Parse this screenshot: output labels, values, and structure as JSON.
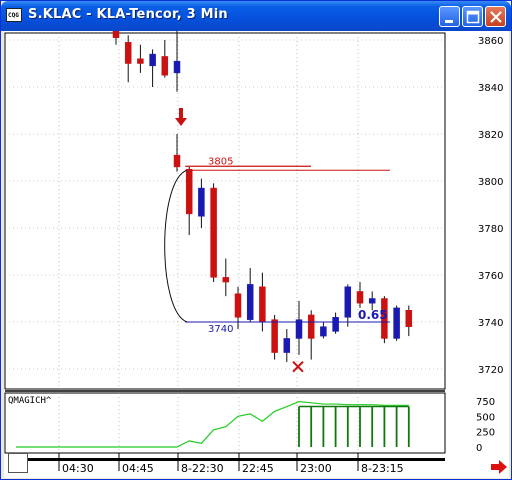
{
  "window": {
    "title": "S.KLAC - KLA-Tencor, 3 Min",
    "icon": "cqg-logo-icon",
    "icon_text": "CQG",
    "buttons": [
      "minimize-icon",
      "maximize-icon",
      "close-icon"
    ]
  },
  "chart_data": [
    {
      "type": "candlestick",
      "title": "",
      "ylim": [
        3710,
        3865
      ],
      "y_ticks": [
        "3860",
        "3840",
        "3820",
        "3800",
        "3780",
        "3760",
        "3740",
        "3720"
      ],
      "x_ticks": [
        "04:30",
        "04:45",
        "8-22:30",
        "22:45",
        "23:00",
        "8-23:15"
      ],
      "colors": {
        "up": "#1a1ab0",
        "down": "#cc1111",
        "grid": "#888888"
      },
      "gap_after_bar": 13,
      "candles": [
        {
          "o": 3866,
          "h": 3868,
          "l": 3858,
          "c": 3861
        },
        {
          "o": 3859,
          "h": 3862,
          "l": 3842,
          "c": 3850
        },
        {
          "o": 3852,
          "h": 3858,
          "l": 3846,
          "c": 3850
        },
        {
          "o": 3849,
          "h": 3856,
          "l": 3840,
          "c": 3854
        },
        {
          "o": 3853,
          "h": 3860,
          "l": 3844,
          "c": 3845
        },
        {
          "o": 3846,
          "h": 3865,
          "l": 3838,
          "c": 3851
        },
        {
          "o": 3811,
          "h": 3820,
          "l": 3804,
          "c": 3806
        },
        {
          "o": 3805,
          "h": 3806,
          "l": 3777,
          "c": 3786
        },
        {
          "o": 3785,
          "h": 3801,
          "l": 3780,
          "c": 3797
        },
        {
          "o": 3797,
          "h": 3799,
          "l": 3757,
          "c": 3759
        },
        {
          "o": 3759,
          "h": 3767,
          "l": 3751,
          "c": 3757
        },
        {
          "o": 3752,
          "h": 3755,
          "l": 3737,
          "c": 3742
        },
        {
          "o": 3741,
          "h": 3763,
          "l": 3740,
          "c": 3756
        },
        {
          "o": 3755,
          "h": 3761,
          "l": 3736,
          "c": 3740
        },
        {
          "o": 3741,
          "h": 3743,
          "l": 3724,
          "c": 3727
        },
        {
          "o": 3727,
          "h": 3737,
          "l": 3723,
          "c": 3733
        },
        {
          "o": 3733,
          "h": 3749,
          "l": 3726,
          "c": 3741
        },
        {
          "o": 3743,
          "h": 3745,
          "l": 3724,
          "c": 3733
        },
        {
          "o": 3734,
          "h": 3740,
          "l": 3733,
          "c": 3738
        },
        {
          "o": 3736,
          "h": 3744,
          "l": 3735,
          "c": 3742
        },
        {
          "o": 3742,
          "h": 3756,
          "l": 3738,
          "c": 3755
        },
        {
          "o": 3753,
          "h": 3757,
          "l": 3746,
          "c": 3748
        },
        {
          "o": 3748,
          "h": 3753,
          "l": 3745,
          "c": 3750
        },
        {
          "o": 3750,
          "h": 3751,
          "l": 3731,
          "c": 3733
        },
        {
          "o": 3733,
          "h": 3747,
          "l": 3732,
          "c": 3746
        },
        {
          "o": 3745,
          "h": 3747,
          "l": 3734,
          "c": 3738
        }
      ],
      "annotations": {
        "upper_level_label": "3805",
        "upper_level": 3805,
        "lower_level_label": "3740",
        "lower_level": 3740,
        "ratio_label": "0.65",
        "arrow_color": "#cc1111",
        "level_color": "#cc1111",
        "lower_color": "#1a1ab0",
        "marker": "x-mark-icon"
      }
    },
    {
      "type": "bar",
      "title": "QMAGICH^",
      "ylim": [
        0,
        780
      ],
      "y_ticks": [
        "750",
        "500",
        "250",
        "0"
      ],
      "line_color": "#22cc22",
      "bar_color": "#117711",
      "line_values": [
        0,
        0,
        0,
        0,
        0,
        0,
        0,
        100,
        60,
        280,
        330,
        500,
        540,
        420,
        580,
        660,
        740,
        720,
        700,
        700,
        690,
        690,
        690,
        680,
        680,
        680
      ],
      "bar_values": [
        null,
        null,
        null,
        null,
        null,
        null,
        null,
        null,
        null,
        null,
        null,
        null,
        null,
        null,
        null,
        null,
        660,
        660,
        660,
        660,
        660,
        660,
        660,
        660,
        660,
        660
      ]
    }
  ]
}
